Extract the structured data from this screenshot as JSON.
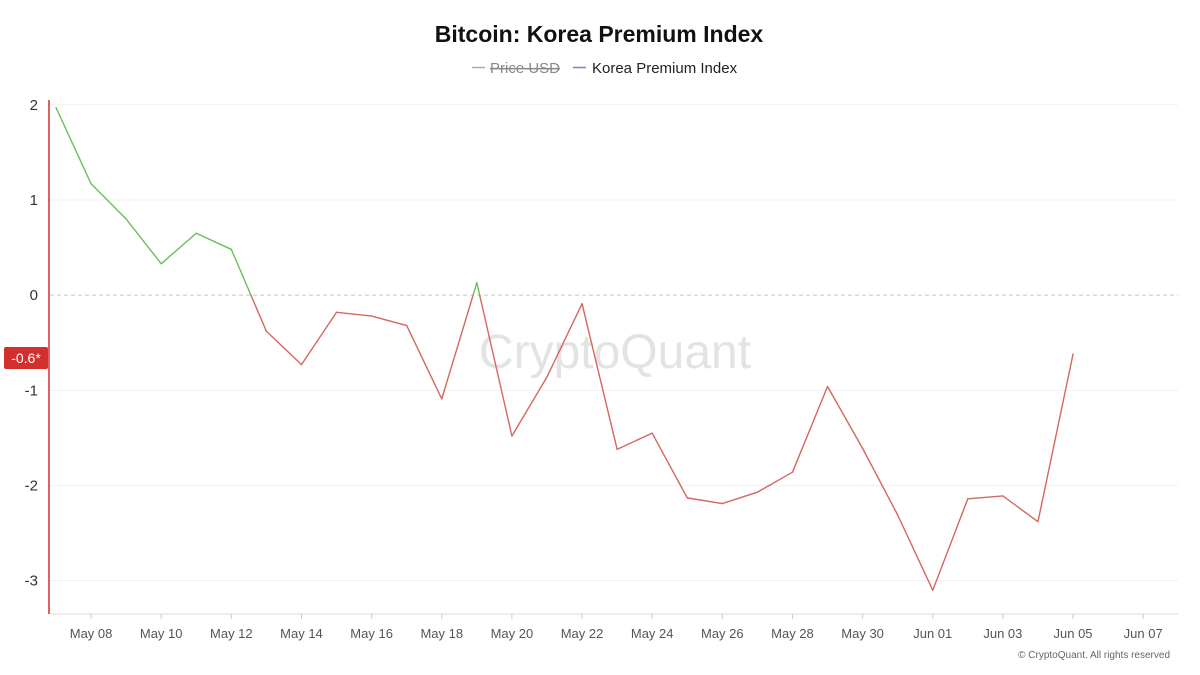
{
  "chart_data": {
    "type": "line",
    "title": "Bitcoin: Korea Premium Index",
    "legend": [
      {
        "label": "Price USD",
        "color": "#aaaaaa",
        "disabled": true
      },
      {
        "label": "Korea Premium Index",
        "color": "#7b7fc4",
        "disabled": false
      }
    ],
    "x_ticks": [
      "May 08",
      "May 10",
      "May 12",
      "May 14",
      "May 16",
      "May 18",
      "May 20",
      "May 22",
      "May 24",
      "May 26",
      "May 28",
      "May 30",
      "Jun 01",
      "Jun 03",
      "Jun 05",
      "Jun 07"
    ],
    "x": [
      "May 07",
      "May 08",
      "May 09",
      "May 10",
      "May 11",
      "May 12",
      "May 13",
      "May 14",
      "May 15",
      "May 16",
      "May 17",
      "May 18",
      "May 19",
      "May 20",
      "May 21",
      "May 22",
      "May 23",
      "May 24",
      "May 25",
      "May 26",
      "May 27",
      "May 28",
      "May 29",
      "May 30",
      "May 31",
      "Jun 01",
      "Jun 02",
      "Jun 03",
      "Jun 04",
      "Jun 05"
    ],
    "series": [
      {
        "name": "Korea Premium Index",
        "values": [
          1.97,
          1.17,
          0.8,
          0.33,
          0.65,
          0.48,
          -0.38,
          -0.73,
          -0.18,
          -0.22,
          -0.32,
          -1.09,
          0.13,
          -1.48,
          -0.86,
          -0.09,
          -1.62,
          -1.45,
          -2.13,
          -2.19,
          -2.07,
          -1.86,
          -0.96,
          -1.61,
          -2.31,
          -3.1,
          -2.14,
          -2.11,
          -2.38,
          -0.62
        ]
      }
    ],
    "y_ticks": [
      2,
      1,
      0,
      -1,
      -2,
      -3
    ],
    "ylim": [
      -3.35,
      2.05
    ],
    "zero_line": true,
    "positive_color": "#6abf59",
    "negative_color": "#d4685f",
    "grid": true,
    "current_value_badge": "-0.6*",
    "badge_color": "#d32f2f",
    "watermark": "CryptoQuant",
    "copyright": "© CryptoQuant. All rights reserved"
  }
}
